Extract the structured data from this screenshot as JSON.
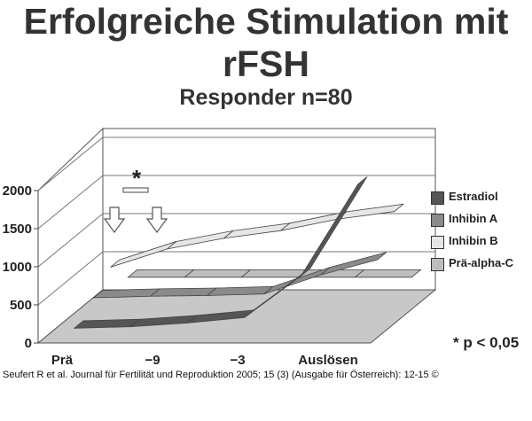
{
  "header": {
    "title_line1": "Erfolgreiche Stimulation mit",
    "title_line2": "rFSH",
    "subtitle": "Responder n=80"
  },
  "chart_data": {
    "type": "area",
    "title": "Erfolgreiche Stimulation mit rFSH",
    "subtitle": "Responder n=80",
    "categories": [
      "Prä",
      "−9",
      "−3",
      "Auslösen"
    ],
    "y_ticks": [
      "0",
      "500",
      "1000",
      "1500",
      "2000"
    ],
    "ylim": [
      0,
      2000
    ],
    "grid": true,
    "legend_position": "right",
    "significance_marker": "*",
    "footnote": "* p < 0,05",
    "series": [
      {
        "name": "Estradiol",
        "color": "#555555",
        "x": [
          0,
          0.2,
          0.4,
          0.6,
          0.8,
          1.0
        ],
        "values": [
          110,
          130,
          180,
          250,
          800,
          2000
        ]
      },
      {
        "name": "Inhibin A",
        "color": "#8a8a8a",
        "x": [
          0,
          0.2,
          0.4,
          0.6,
          0.8,
          1.0
        ],
        "values": [
          300,
          320,
          330,
          350,
          600,
          800
        ]
      },
      {
        "name": "Inhibin B",
        "color": "#e6e6e6",
        "x": [
          0,
          0.2,
          0.4,
          0.6,
          0.8,
          1.0
        ],
        "values": [
          520,
          760,
          900,
          1000,
          1150,
          1250
        ]
      },
      {
        "name": "Prä-alpha-C",
        "color": "#bdbdbd",
        "x": [
          0,
          0.2,
          0.4,
          0.6,
          0.8,
          1.0
        ],
        "values": [
          200,
          200,
          200,
          200,
          200,
          200
        ]
      }
    ]
  },
  "legend": {
    "items": [
      {
        "label": "Estradiol",
        "color": "#555555"
      },
      {
        "label": "Inhibin A",
        "color": "#8a8a8a"
      },
      {
        "label": "Inhibin B",
        "color": "#e6e6e6"
      },
      {
        "label": "Prä-alpha-C",
        "color": "#bdbdbd"
      }
    ]
  },
  "footnote": "* p < 0,05",
  "source": "Seufert R et al. Journal für Fertilität und Reproduktion 2005; 15 (3) (Ausgabe für Österreich): 12-15 ©"
}
